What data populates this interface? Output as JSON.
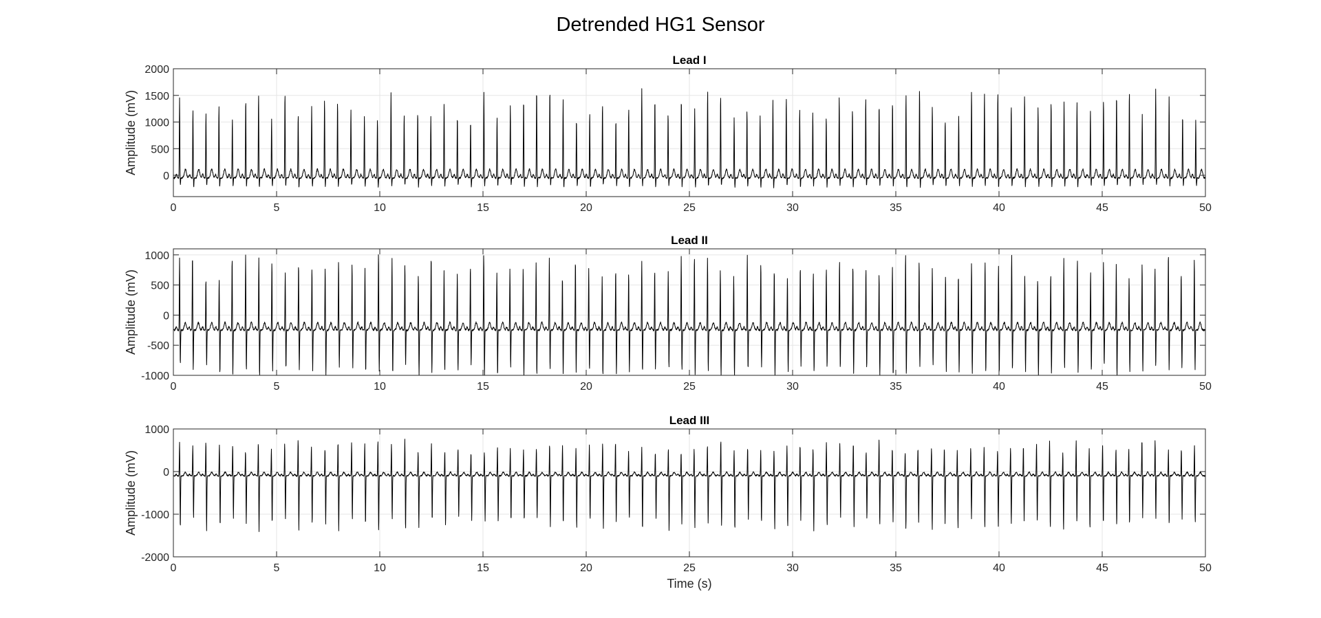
{
  "figure": {
    "title": "Detrended HG1 Sensor"
  },
  "chart_data": [
    {
      "type": "line",
      "title": "Lead I",
      "xlabel": "",
      "ylabel": "Amplitude (mV)",
      "xlim": [
        0,
        50
      ],
      "ylim": [
        -400,
        2000
      ],
      "xticks": [
        0,
        5,
        10,
        15,
        20,
        25,
        30,
        35,
        40,
        45,
        50
      ],
      "yticks": [
        0,
        500,
        1000,
        1500,
        2000
      ],
      "grid": true,
      "color": "#000000",
      "waveform": {
        "baseline": -50,
        "peak_typical": 1300,
        "nadir_typical": -220,
        "heart_rate_bpm": 94,
        "duration_s": 50
      },
      "series": [
        {
          "values": []
        }
      ]
    },
    {
      "type": "line",
      "title": "Lead II",
      "xlabel": "",
      "ylabel": "Amplitude (mV)",
      "xlim": [
        0,
        50
      ],
      "ylim": [
        -1000,
        1100
      ],
      "xticks": [
        0,
        5,
        10,
        15,
        20,
        25,
        30,
        35,
        40,
        45,
        50
      ],
      "yticks": [
        -1000,
        -500,
        0,
        500,
        1000
      ],
      "grid": true,
      "color": "#000000",
      "waveform": {
        "baseline": -250,
        "peak_typical": 800,
        "nadir_typical": -950,
        "heart_rate_bpm": 94,
        "duration_s": 50
      },
      "series": [
        {
          "values": []
        }
      ]
    },
    {
      "type": "line",
      "title": "Lead III",
      "xlabel": "Time (s)",
      "ylabel": "Amplitude (mV)",
      "xlim": [
        0,
        50
      ],
      "ylim": [
        -2000,
        1000
      ],
      "xticks": [
        0,
        5,
        10,
        15,
        20,
        25,
        30,
        35,
        40,
        45,
        50
      ],
      "yticks": [
        -2000,
        -1000,
        0,
        1000
      ],
      "grid": true,
      "color": "#000000",
      "waveform": {
        "baseline": -100,
        "peak_typical": 600,
        "nadir_typical": -1250,
        "heart_rate_bpm": 94,
        "duration_s": 50
      },
      "series": [
        {
          "values": []
        }
      ]
    }
  ]
}
